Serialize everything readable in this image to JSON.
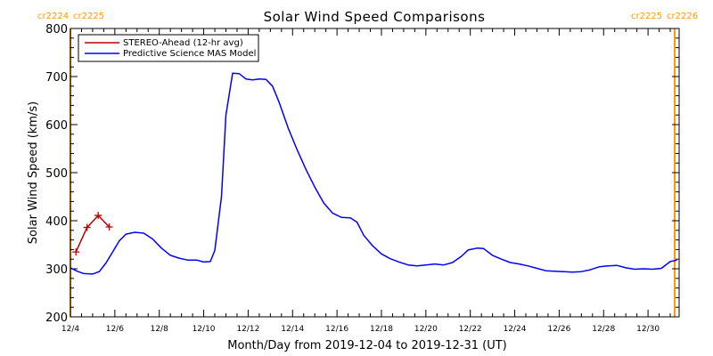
{
  "chart_data": {
    "type": "line",
    "title": "Solar Wind Speed Comparisons",
    "xlabel": "Month/Day from 2019-12-04 to 2019-12-31 (UT)",
    "ylabel": "Solar Wind Speed (km/s)",
    "ylim": [
      200,
      800
    ],
    "yticks": [
      200,
      300,
      400,
      500,
      600,
      700,
      800
    ],
    "xlim": [
      0,
      27.4
    ],
    "xtick_values": [
      0,
      2,
      4,
      6,
      8,
      10,
      12,
      14,
      16,
      18,
      20,
      22,
      24,
      26
    ],
    "xtick_labels": [
      "12/4",
      "12/6",
      "12/8",
      "12/10",
      "12/12",
      "12/14",
      "12/16",
      "12/18",
      "12/20",
      "12/22",
      "12/24",
      "12/26",
      "12/28",
      "12/30"
    ],
    "carrington_labels": {
      "left": [
        "cr2224",
        "cr2225"
      ],
      "right": [
        "cr2225",
        "cr2226"
      ]
    },
    "carrington_lines": [
      0,
      27.2
    ],
    "legend_position": "top-left",
    "series": [
      {
        "name": "STEREO-Ahead (12-hr avg)",
        "color": "#bb0000",
        "marker": "+",
        "points": [
          [
            0.25,
            335
          ],
          [
            0.75,
            386
          ],
          [
            1.25,
            411
          ],
          [
            1.75,
            387
          ]
        ]
      },
      {
        "name": "Predictive Science MAS Model",
        "color": "#0000ff",
        "points": [
          [
            0,
            302
          ],
          [
            0.3,
            295
          ],
          [
            0.6,
            290
          ],
          [
            1.0,
            289
          ],
          [
            1.3,
            294
          ],
          [
            1.6,
            312
          ],
          [
            1.9,
            335
          ],
          [
            2.2,
            358
          ],
          [
            2.5,
            372
          ],
          [
            2.9,
            376
          ],
          [
            3.3,
            374
          ],
          [
            3.7,
            362
          ],
          [
            4.1,
            343
          ],
          [
            4.5,
            328
          ],
          [
            4.9,
            322
          ],
          [
            5.3,
            318
          ],
          [
            5.7,
            318
          ],
          [
            6.0,
            314
          ],
          [
            6.3,
            315
          ],
          [
            6.5,
            338
          ],
          [
            6.8,
            450
          ],
          [
            7.0,
            620
          ],
          [
            7.3,
            707
          ],
          [
            7.6,
            706
          ],
          [
            7.9,
            695
          ],
          [
            8.2,
            693
          ],
          [
            8.5,
            695
          ],
          [
            8.8,
            694
          ],
          [
            9.1,
            680
          ],
          [
            9.4,
            646
          ],
          [
            9.8,
            593
          ],
          [
            10.2,
            548
          ],
          [
            10.6,
            507
          ],
          [
            11.0,
            470
          ],
          [
            11.4,
            437
          ],
          [
            11.8,
            416
          ],
          [
            12.2,
            407
          ],
          [
            12.6,
            406
          ],
          [
            12.9,
            397
          ],
          [
            13.2,
            370
          ],
          [
            13.6,
            348
          ],
          [
            14.0,
            331
          ],
          [
            14.4,
            321
          ],
          [
            14.8,
            314
          ],
          [
            15.2,
            308
          ],
          [
            15.6,
            306
          ],
          [
            16.0,
            308
          ],
          [
            16.4,
            310
          ],
          [
            16.8,
            308
          ],
          [
            17.2,
            313
          ],
          [
            17.6,
            326
          ],
          [
            17.9,
            339
          ],
          [
            18.3,
            343
          ],
          [
            18.6,
            342
          ],
          [
            19.0,
            328
          ],
          [
            19.4,
            320
          ],
          [
            19.8,
            313
          ],
          [
            20.2,
            310
          ],
          [
            20.6,
            306
          ],
          [
            21.0,
            301
          ],
          [
            21.4,
            296
          ],
          [
            21.8,
            295
          ],
          [
            22.2,
            294
          ],
          [
            22.6,
            293
          ],
          [
            23.0,
            294
          ],
          [
            23.4,
            298
          ],
          [
            23.8,
            304
          ],
          [
            24.2,
            306
          ],
          [
            24.6,
            307
          ],
          [
            25.0,
            302
          ],
          [
            25.4,
            299
          ],
          [
            25.8,
            300
          ],
          [
            26.2,
            299
          ],
          [
            26.6,
            301
          ],
          [
            27.0,
            315
          ],
          [
            27.3,
            318
          ]
        ]
      }
    ]
  }
}
